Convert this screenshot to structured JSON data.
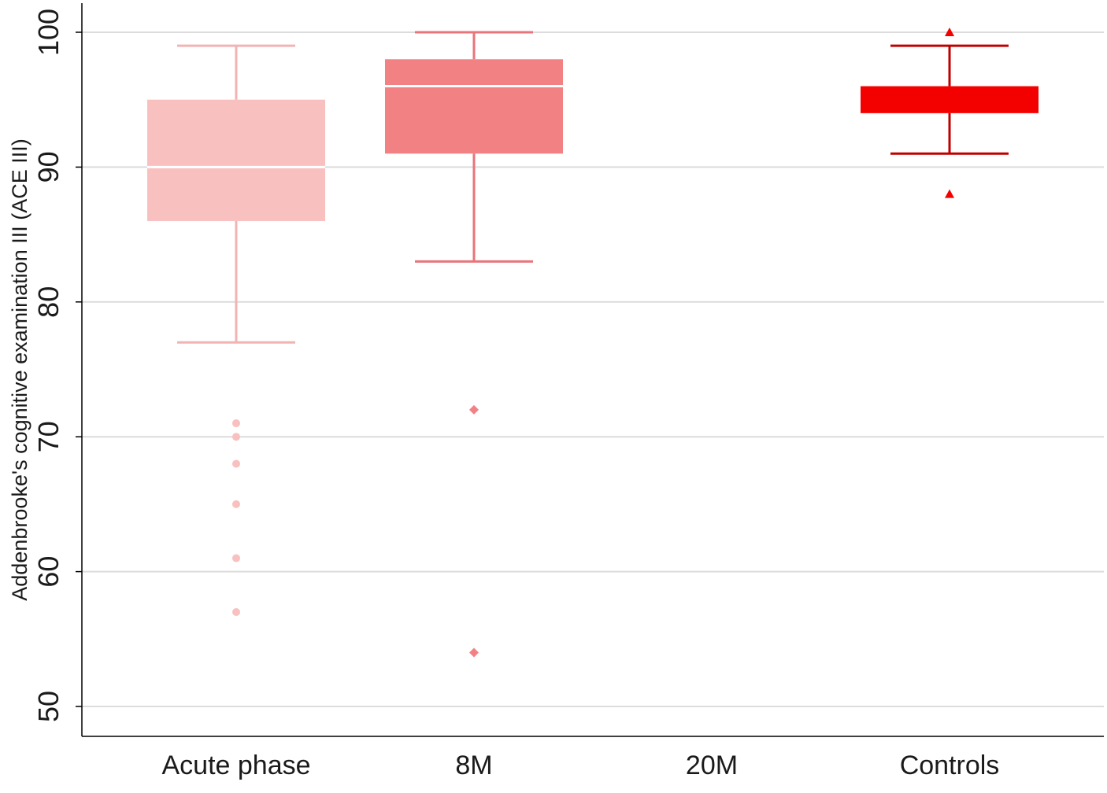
{
  "chart_data": {
    "type": "box",
    "ylabel": "Addenbrooke's cognitive examination III (ACE III)",
    "xlabel": "",
    "ylim": [
      50,
      100
    ],
    "yticks": [
      "50",
      "60",
      "70",
      "80",
      "90",
      "100"
    ],
    "grid": true,
    "categories": [
      "Acute phase",
      "8M",
      "20M",
      "Controls"
    ],
    "boxes": [
      {
        "category": "Acute phase",
        "color": "#f9c0c0",
        "whisker_low": 77,
        "q1": 86,
        "median": 90,
        "q3": 95,
        "whisker_high": 99,
        "outliers": [
          71,
          70,
          68,
          65,
          61,
          57
        ],
        "outlier_marker": "circle"
      },
      {
        "category": "8M",
        "color": "#f28184",
        "whisker_low": 83,
        "q1": 91,
        "median": 96,
        "q3": 98,
        "whisker_high": 100,
        "outliers": [
          72,
          54
        ],
        "outlier_marker": "diamond"
      },
      {
        "category": "20M",
        "color": "",
        "empty": true
      },
      {
        "category": "Controls",
        "color": "#f30000",
        "whisker_low": 91,
        "q1": 94,
        "median": 95,
        "q3": 96,
        "whisker_high": 99,
        "outliers": [
          100,
          88
        ],
        "outlier_marker": "triangle"
      }
    ],
    "colors": {
      "grid": "#dcdcdc",
      "axis": "#000000",
      "median_line": "#ffffff",
      "acute_whisker": "#f2b3b3",
      "m8_whisker": "#e8757a",
      "controls_whisker": "#c00000"
    }
  }
}
